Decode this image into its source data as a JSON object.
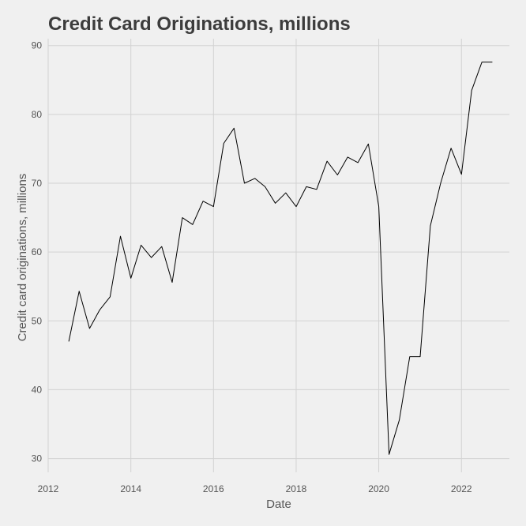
{
  "chart_data": {
    "type": "line",
    "title": "Credit Card Originations, millions",
    "xlabel": "Date",
    "ylabel": "Credit card originations, millions",
    "xlim": [
      "2012-01-01",
      "2023-03-01"
    ],
    "ylim": [
      28,
      91
    ],
    "x_ticks": [
      "2012-01-01",
      "2014-01-01",
      "2016-01-01",
      "2018-01-01",
      "2020-01-01",
      "2022-01-01"
    ],
    "x_tick_labels": [
      "2012",
      "2014",
      "2016",
      "2018",
      "2020",
      "2022"
    ],
    "y_ticks": [
      30,
      40,
      50,
      60,
      70,
      80,
      90
    ],
    "y_tick_labels": [
      "30",
      "40",
      "50",
      "60",
      "70",
      "80",
      "90"
    ],
    "grid": true,
    "line_color": "#000000",
    "series": [
      {
        "x": [
          "2012-07-01",
          "2012-10-01",
          "2013-01-01",
          "2013-04-01",
          "2013-07-01",
          "2013-10-01",
          "2014-01-01",
          "2014-04-01",
          "2014-07-01",
          "2014-10-01",
          "2015-01-01",
          "2015-04-01",
          "2015-07-01",
          "2015-10-01",
          "2016-01-01",
          "2016-04-01",
          "2016-07-01",
          "2016-10-01",
          "2017-01-01",
          "2017-04-01",
          "2017-07-01",
          "2017-10-01",
          "2018-01-01",
          "2018-04-01",
          "2018-07-01",
          "2018-10-01",
          "2019-01-01",
          "2019-04-01",
          "2019-07-01",
          "2019-10-01",
          "2020-01-01",
          "2020-04-01",
          "2020-07-01",
          "2020-10-01",
          "2021-01-01",
          "2021-04-01",
          "2021-07-01",
          "2021-10-01",
          "2022-01-01",
          "2022-04-01",
          "2022-07-01",
          "2022-10-01"
        ],
        "values": [
          47.0,
          54.3,
          48.9,
          51.6,
          53.5,
          62.3,
          56.2,
          61.0,
          59.2,
          60.8,
          55.6,
          65.0,
          64.0,
          67.4,
          66.6,
          75.8,
          78.0,
          70.0,
          70.7,
          69.5,
          67.1,
          68.6,
          66.6,
          69.5,
          69.1,
          73.2,
          71.2,
          73.8,
          73.0,
          75.7,
          66.6,
          30.6,
          35.6,
          44.8,
          44.8,
          63.8,
          70.0,
          75.1,
          71.3,
          83.5,
          87.6,
          87.6
        ]
      }
    ]
  }
}
